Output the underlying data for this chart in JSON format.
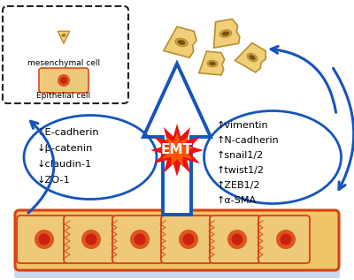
{
  "bg_color": "#ffffff",
  "left_text": [
    "↓E-cadherin",
    "↓β-catenin",
    "↓claudin-1",
    "↓ZO-1"
  ],
  "right_text": [
    "↑vimentin",
    "↑N-cadherin",
    "↑snail1/2",
    "↑twist1/2",
    "↑ZEB1/2",
    "↑α-SMA"
  ],
  "legend_title1": "mesenchymal cell",
  "legend_title2": "Epithelial cell",
  "emt_label": "EMT",
  "cell_color": "#EEC97A",
  "cell_color2": "#F2D080",
  "cell_border": "#D94010",
  "nucleus_outer": "#DD5520",
  "nucleus_inner": "#CC2010",
  "arrow_color": "#1555BB",
  "star_red": "#EE1010",
  "star_orange": "#FF5500",
  "tissue_bg": "#F0C468",
  "tissue_border": "#D84010",
  "water_color": "#B8D4EE",
  "legend_border": "#222222",
  "meso_cell_fill": "#F0CF78",
  "meso_cell_edge": "#B89030",
  "meso_nuc_outer": "#C8A038",
  "meso_nuc_inner": "#7A5010"
}
